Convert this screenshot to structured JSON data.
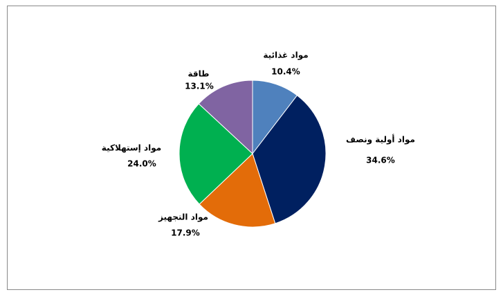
{
  "chart_data": {
    "type": "pie",
    "categories": [
      "مواد غذائية",
      "مواد أولية ونصف",
      "مواد التجهيز",
      "مواد إستهلاكية",
      "طاقة"
    ],
    "values": [
      10.4,
      34.6,
      17.9,
      24.0,
      13.1
    ],
    "value_labels": [
      "10.4%",
      "34.6%",
      "17.9%",
      "24.0%",
      "13.1%"
    ],
    "colors": [
      "#4f81bd",
      "#002060",
      "#e36c09",
      "#00b050",
      "#8064a2"
    ]
  }
}
